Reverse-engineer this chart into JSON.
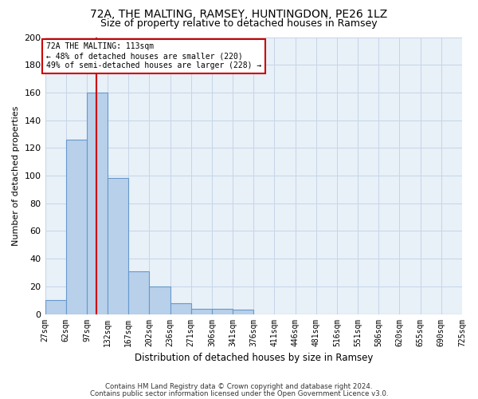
{
  "title1": "72A, THE MALTING, RAMSEY, HUNTINGDON, PE26 1LZ",
  "title2": "Size of property relative to detached houses in Ramsey",
  "xlabel": "Distribution of detached houses by size in Ramsey",
  "ylabel": "Number of detached properties",
  "bin_labels": [
    "27sqm",
    "62sqm",
    "97sqm",
    "132sqm",
    "167sqm",
    "202sqm",
    "236sqm",
    "271sqm",
    "306sqm",
    "341sqm",
    "376sqm",
    "411sqm",
    "446sqm",
    "481sqm",
    "516sqm",
    "551sqm",
    "586sqm",
    "620sqm",
    "655sqm",
    "690sqm",
    "725sqm"
  ],
  "bar_heights": [
    10,
    126,
    160,
    98,
    31,
    20,
    8,
    4,
    4,
    3,
    0,
    0,
    0,
    0,
    0,
    0,
    0,
    0,
    0,
    0
  ],
  "bar_color": "#b8d0ea",
  "bar_edge_color": "#6699cc",
  "grid_color": "#c5d5e8",
  "background_color": "#e8f0f8",
  "vline_color": "#cc0000",
  "vline_pos": 2,
  "annotation_text": "72A THE MALTING: 113sqm\n← 48% of detached houses are smaller (220)\n49% of semi-detached houses are larger (228) →",
  "annotation_box_color": "#ffffff",
  "annotation_box_edge": "#cc0000",
  "footer1": "Contains HM Land Registry data © Crown copyright and database right 2024.",
  "footer2": "Contains public sector information licensed under the Open Government Licence v3.0.",
  "ylim": [
    0,
    200
  ],
  "yticks": [
    0,
    20,
    40,
    60,
    80,
    100,
    120,
    140,
    160,
    180,
    200
  ],
  "title1_fontsize": 10,
  "title2_fontsize": 9,
  "ylabel_fontsize": 8,
  "xlabel_fontsize": 8.5,
  "tick_fontsize": 7,
  "annot_fontsize": 7
}
